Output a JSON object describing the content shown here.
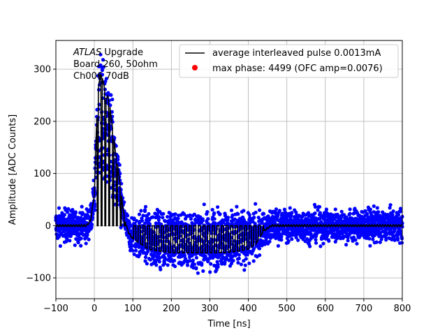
{
  "chart_data": {
    "type": "scatter",
    "title": "",
    "xlabel": "Time [ns]",
    "ylabel": "Amplitude [ADC Counts]",
    "xlim": [
      -100,
      800
    ],
    "ylim": [
      -140,
      355
    ],
    "x_ticks": [
      -100,
      0,
      100,
      200,
      300,
      400,
      500,
      600,
      700,
      800
    ],
    "y_ticks": [
      -100,
      0,
      100,
      200,
      300
    ],
    "grid": true,
    "legend_position": "top-right",
    "annotation": {
      "italic_word": "ATLAS",
      "rest_line1": " Upgrade",
      "line2": " Board 260, 50ohm",
      "line3": " Ch006 70dB"
    },
    "series": [
      {
        "name": "average interleaved pulse 0.0013mA",
        "kind": "line",
        "color": "#000000",
        "x": [
          -100,
          -20,
          -10,
          0,
          5,
          10,
          15,
          20,
          25,
          30,
          35,
          40,
          45,
          50,
          55,
          60,
          65,
          70,
          75,
          80,
          85,
          90,
          100,
          120,
          140,
          160,
          180,
          200,
          220,
          240,
          260,
          280,
          300,
          320,
          340,
          360,
          380,
          400,
          420,
          440,
          460,
          480,
          800
        ],
        "y": [
          0,
          0,
          10,
          60,
          180,
          260,
          290,
          285,
          270,
          240,
          250,
          230,
          200,
          170,
          140,
          120,
          90,
          60,
          30,
          10,
          -5,
          -15,
          -25,
          -35,
          -45,
          -48,
          -50,
          -52,
          -52,
          -52,
          -52,
          -52,
          -52,
          -52,
          -52,
          -50,
          -48,
          -45,
          -35,
          -10,
          0,
          0,
          0
        ]
      },
      {
        "name": "max phase: 4499 (OFC amp=0.0076)",
        "kind": "scatter",
        "color": "#ff0000"
      },
      {
        "name": "samples",
        "kind": "scatter",
        "color": "#0000ff",
        "x_range": [
          -100,
          800
        ],
        "noise_sigma": 15,
        "y_min": -115,
        "y_max": 335
      }
    ]
  }
}
